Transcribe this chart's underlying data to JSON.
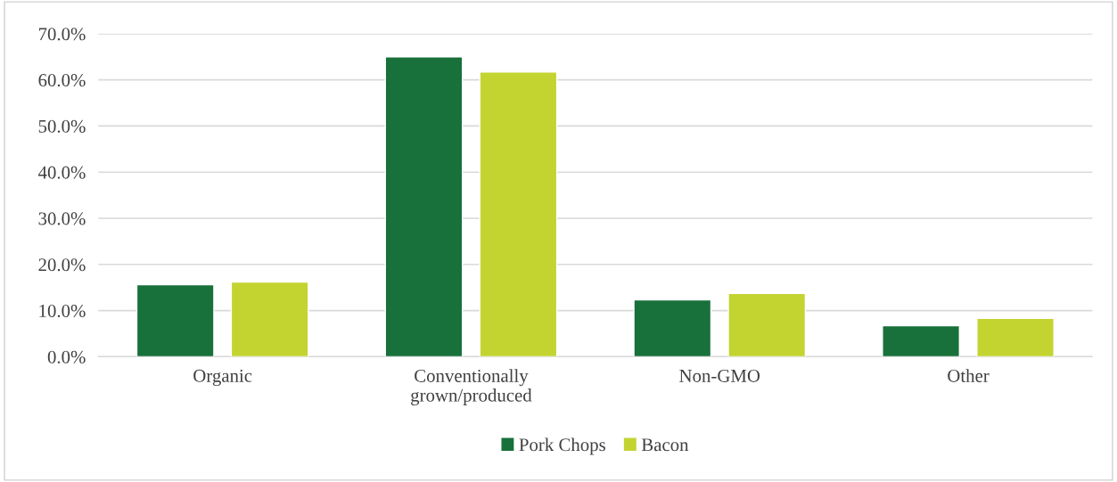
{
  "chart_data": {
    "type": "bar",
    "categories": [
      "Organic",
      "Conventionally\ngrown/produced",
      "Non-GMO",
      "Other"
    ],
    "series": [
      {
        "name": "Pork Chops",
        "color": "#18703a",
        "values": [
          15.6,
          65.0,
          12.3,
          6.7
        ]
      },
      {
        "name": "Bacon",
        "color": "#c3d431",
        "values": [
          16.2,
          61.7,
          13.7,
          8.3
        ]
      }
    ],
    "ylim": [
      0,
      70
    ],
    "yticks": [
      {
        "value": 0,
        "label": "0.0%"
      },
      {
        "value": 10,
        "label": "10.0%"
      },
      {
        "value": 20,
        "label": "20.0%"
      },
      {
        "value": 30,
        "label": "30.0%"
      },
      {
        "value": 40,
        "label": "40.0%"
      },
      {
        "value": 50,
        "label": "50.0%"
      },
      {
        "value": 60,
        "label": "60.0%"
      },
      {
        "value": 70,
        "label": "70.0%"
      }
    ],
    "grid": "y",
    "legend": "bottom"
  }
}
